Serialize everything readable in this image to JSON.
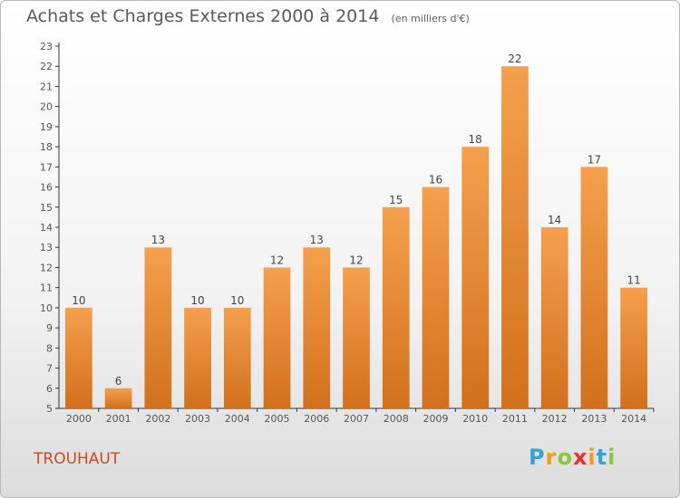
{
  "header": {
    "title": "Achats et Charges Externes 2000 à 2014",
    "subtitle": "(en milliers d'€)"
  },
  "commune": "TROUHAUT",
  "logo": {
    "letters": [
      {
        "ch": "P",
        "color": "#3aa0d8"
      },
      {
        "ch": "r",
        "color": "#f39a1f"
      },
      {
        "ch": "o",
        "color": "#8cc63f"
      },
      {
        "ch": "x",
        "color": "#e8312f"
      },
      {
        "ch": "i",
        "color": "#f39a1f"
      },
      {
        "ch": "t",
        "color": "#3aa0d8"
      },
      {
        "ch": "i",
        "color": "#8cc63f"
      }
    ]
  },
  "chart_data": {
    "type": "bar",
    "categories": [
      "2000",
      "2001",
      "2002",
      "2003",
      "2004",
      "2005",
      "2006",
      "2007",
      "2008",
      "2009",
      "2010",
      "2011",
      "2012",
      "2013",
      "2014"
    ],
    "values": [
      10,
      6,
      13,
      10,
      10,
      12,
      13,
      12,
      15,
      16,
      18,
      22,
      14,
      17,
      11
    ],
    "ylim": [
      5,
      23
    ],
    "yticks": [
      5,
      6,
      7,
      8,
      9,
      10,
      11,
      12,
      13,
      14,
      15,
      16,
      17,
      18,
      19,
      20,
      21,
      22,
      23
    ],
    "data_labels": true,
    "grid": false,
    "colors": {
      "bar_top": "#f5a04e",
      "bar_bottom": "#d2701c",
      "axis": "#333333"
    }
  }
}
